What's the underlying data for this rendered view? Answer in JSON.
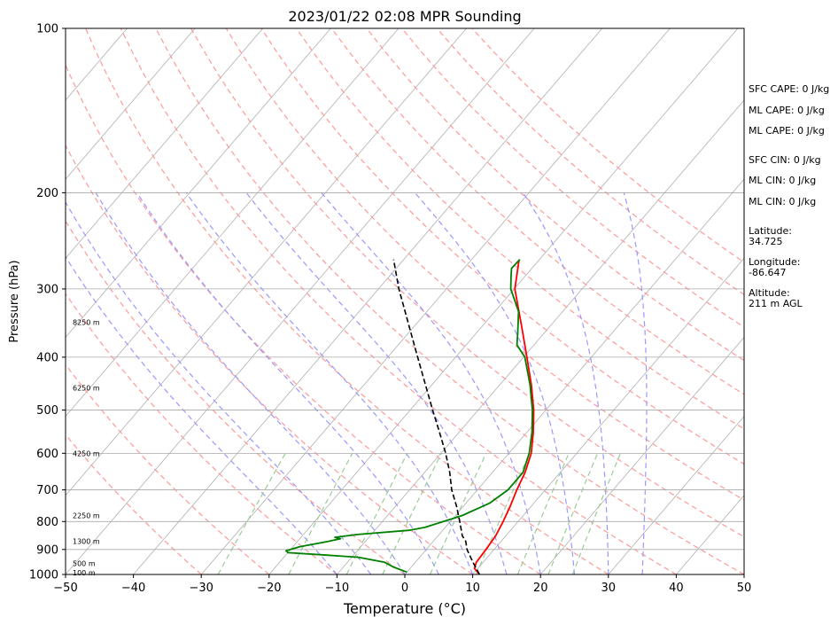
{
  "chart_data": {
    "type": "line",
    "title": "2023/01/22 02:08 MPR Sounding",
    "xlabel": "Temperature (°C)",
    "ylabel": "Pressure (hPa)",
    "xlim": [
      -50,
      50
    ],
    "ylim": [
      1000,
      100
    ],
    "y_scale": "log",
    "grid": true,
    "x_ticks": [
      -50,
      -40,
      -30,
      -20,
      -10,
      0,
      10,
      20,
      30,
      40,
      50
    ],
    "y_ticks": [
      100,
      200,
      300,
      400,
      500,
      600,
      700,
      800,
      900,
      1000
    ],
    "series": [
      {
        "type": "temperature",
        "color": "#ff0000",
        "points": [
          [
            1000,
            11.0
          ],
          [
            975,
            9.5
          ],
          [
            950,
            9.0
          ],
          [
            900,
            8.8
          ],
          [
            850,
            8.5
          ],
          [
            800,
            7.8
          ],
          [
            750,
            6.9
          ],
          [
            700,
            5.8
          ],
          [
            650,
            4.8
          ],
          [
            600,
            3.3
          ],
          [
            550,
            1.0
          ],
          [
            500,
            -1.8
          ],
          [
            450,
            -5.3
          ],
          [
            400,
            -9.5
          ],
          [
            350,
            -14.3
          ],
          [
            300,
            -19.9
          ],
          [
            265,
            -23.0
          ]
        ]
      },
      {
        "type": "dewpoint",
        "color": "#008000",
        "points": [
          [
            990,
            0.0
          ],
          [
            970,
            -2.5
          ],
          [
            950,
            -4.5
          ],
          [
            930,
            -9.0
          ],
          [
            920,
            -15.0
          ],
          [
            912,
            -20.0
          ],
          [
            905,
            -20.5
          ],
          [
            890,
            -19.0
          ],
          [
            870,
            -15.5
          ],
          [
            860,
            -14.0
          ],
          [
            855,
            -15.0
          ],
          [
            845,
            -12.0
          ],
          [
            830,
            -5.0
          ],
          [
            820,
            -3.0
          ],
          [
            780,
            1.0
          ],
          [
            740,
            3.5
          ],
          [
            700,
            4.5
          ],
          [
            650,
            4.5
          ],
          [
            600,
            3.0
          ],
          [
            550,
            0.8
          ],
          [
            500,
            -2.0
          ],
          [
            450,
            -5.5
          ],
          [
            400,
            -9.8
          ],
          [
            380,
            -12.5
          ],
          [
            360,
            -14.0
          ],
          [
            330,
            -16.5
          ],
          [
            300,
            -20.5
          ],
          [
            285,
            -22.0
          ],
          [
            275,
            -23.0
          ],
          [
            265,
            -22.9
          ]
        ]
      },
      {
        "type": "parcel",
        "color": "#000000",
        "style": "dashed",
        "points": [
          [
            1000,
            11.0
          ],
          [
            950,
            8.5
          ],
          [
            900,
            6.0
          ],
          [
            870,
            4.8
          ],
          [
            850,
            3.6
          ],
          [
            800,
            1.4
          ],
          [
            750,
            -1.0
          ],
          [
            700,
            -3.8
          ],
          [
            650,
            -6.3
          ],
          [
            600,
            -9.3
          ],
          [
            550,
            -12.8
          ],
          [
            500,
            -16.7
          ],
          [
            450,
            -20.9
          ],
          [
            400,
            -25.6
          ],
          [
            350,
            -30.9
          ],
          [
            300,
            -37.0
          ],
          [
            265,
            -41.5
          ]
        ]
      }
    ],
    "background_lines": {
      "isotherms_c": [
        -130,
        -120,
        -110,
        -100,
        -90,
        -80,
        -70,
        -60,
        -50,
        -40,
        -30,
        -20,
        -10,
        0,
        10,
        20,
        30,
        40,
        50
      ],
      "dry_adiabats_c": [
        -30,
        -20,
        -10,
        0,
        10,
        20,
        30,
        40,
        50,
        60,
        70,
        80,
        90,
        100,
        110,
        120,
        130,
        140
      ],
      "moist_adiabats_c": [
        -10,
        -5,
        0,
        5,
        10,
        15,
        20,
        25,
        30,
        35
      ],
      "mixing_ratio_gkg": [
        0.4,
        1,
        2,
        3,
        5,
        8,
        12,
        16,
        20
      ]
    },
    "height_labels": [
      {
        "pressure": 993,
        "text": "100 m"
      },
      {
        "pressure": 955,
        "text": "500 m"
      },
      {
        "pressure": 870,
        "text": "1300 m"
      },
      {
        "pressure": 780,
        "text": "2250 m"
      },
      {
        "pressure": 600,
        "text": "4250 m"
      },
      {
        "pressure": 455,
        "text": "6250 m"
      },
      {
        "pressure": 345,
        "text": "8250 m"
      }
    ]
  },
  "indices": [
    {
      "label": "SFC CAPE: 0 J/kg"
    },
    {
      "label": "ML CAPE: 0 J/kg"
    },
    {
      "label": "ML CAPE: 0 J/kg"
    },
    {
      "label": "SFC CIN: 0 J/kg"
    },
    {
      "label": "ML CIN: 0 J/kg"
    },
    {
      "label": "ML CIN: 0 J/kg"
    }
  ],
  "location": {
    "latitude": "Latitude:\n34.725",
    "longitude": "Longitude:\n-86.647",
    "altitude": "Altitude:\n211 m AGL"
  },
  "colors": {
    "isotherm": "#b0b0b0",
    "dry_adiabat": "#ff9999",
    "moist_adiabat": "#9999ff",
    "mixing_ratio": "#99cc99",
    "grid": "#aaaaaa"
  }
}
